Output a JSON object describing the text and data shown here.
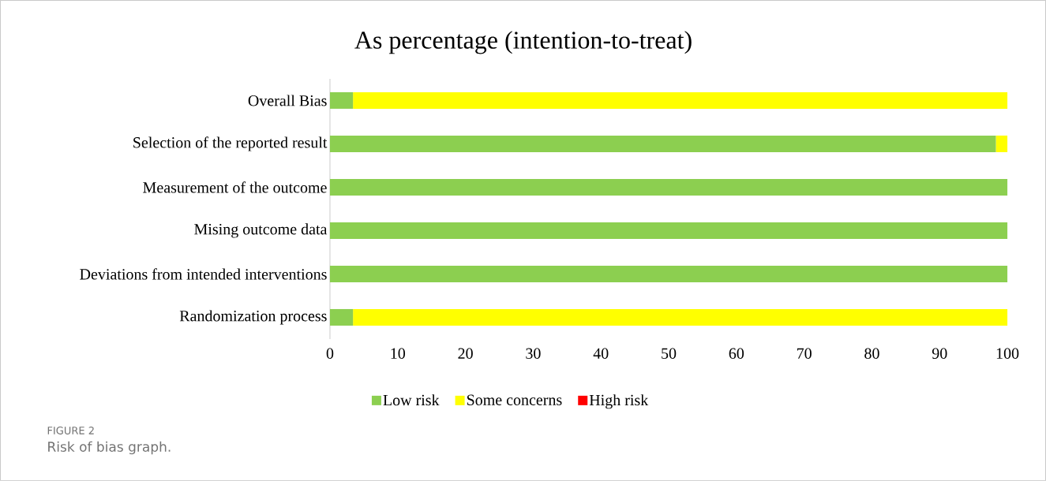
{
  "chart_data": {
    "type": "bar",
    "orientation": "horizontal",
    "stacked": true,
    "title": "As percentage (intention-to-treat)",
    "categories": [
      "Overall Bias",
      "Selection of the reported result",
      "Measurement of the outcome",
      "Mising outcome data",
      "Deviations from intended interventions",
      "Randomization process"
    ],
    "series": [
      {
        "name": "Low risk",
        "color": "#8ccf50",
        "values": [
          3.4,
          98.3,
          100,
          100,
          100,
          3.4
        ]
      },
      {
        "name": "Some concerns",
        "color": "#ffff00",
        "values": [
          96.6,
          1.7,
          0,
          0,
          0,
          96.6
        ]
      },
      {
        "name": "High risk",
        "color": "#ff0000",
        "values": [
          0,
          0,
          0,
          0,
          0,
          0
        ]
      }
    ],
    "xlim": [
      0,
      100
    ],
    "xticks": [
      0,
      10,
      20,
      30,
      40,
      50,
      60,
      70,
      80,
      90,
      100
    ],
    "legend": "bottom",
    "annotations": [
      "FIGURE 2",
      "Risk of bias graph."
    ]
  }
}
